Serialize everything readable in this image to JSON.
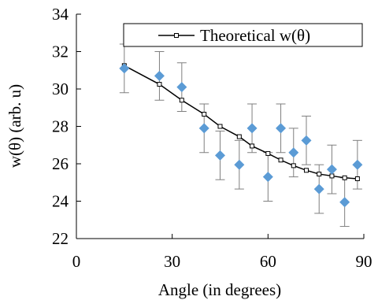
{
  "chart_data": {
    "type": "scatter",
    "xlabel": "Angle (in degrees)",
    "ylabel": "w(θ) (arb. u)",
    "xlim": [
      0,
      90
    ],
    "ylim": [
      22,
      34
    ],
    "xticks": [
      0,
      30,
      60,
      90
    ],
    "yticks": [
      22,
      24,
      26,
      28,
      30,
      32,
      34
    ],
    "grid": false,
    "legend_position": "top",
    "colors": {
      "measured": "#5b9bd5",
      "theoretical": "#000000",
      "error_bar": "#7f7f7f"
    },
    "series": [
      {
        "kind": "scatter-with-error",
        "x": [
          15,
          26,
          33,
          40,
          45,
          51,
          55,
          60,
          64,
          68,
          72,
          76,
          80,
          84,
          88
        ],
        "y": [
          31.1,
          30.7,
          30.1,
          27.9,
          26.45,
          25.95,
          27.9,
          25.3,
          27.9,
          26.6,
          27.25,
          24.65,
          25.7,
          23.95,
          25.95
        ],
        "err": [
          1.3,
          1.3,
          1.3,
          1.3,
          1.3,
          1.3,
          1.3,
          1.3,
          1.3,
          1.3,
          1.3,
          1.3,
          1.3,
          1.3,
          1.3
        ]
      },
      {
        "name": "Theoretical w(θ)",
        "kind": "line",
        "x": [
          15,
          26,
          33,
          40,
          45,
          51,
          55,
          60,
          64,
          68,
          72,
          76,
          80,
          84,
          88
        ],
        "y": [
          31.25,
          30.25,
          29.4,
          28.65,
          28.0,
          27.45,
          26.95,
          26.55,
          26.2,
          25.9,
          25.65,
          25.45,
          25.35,
          25.25,
          25.2
        ]
      }
    ]
  }
}
